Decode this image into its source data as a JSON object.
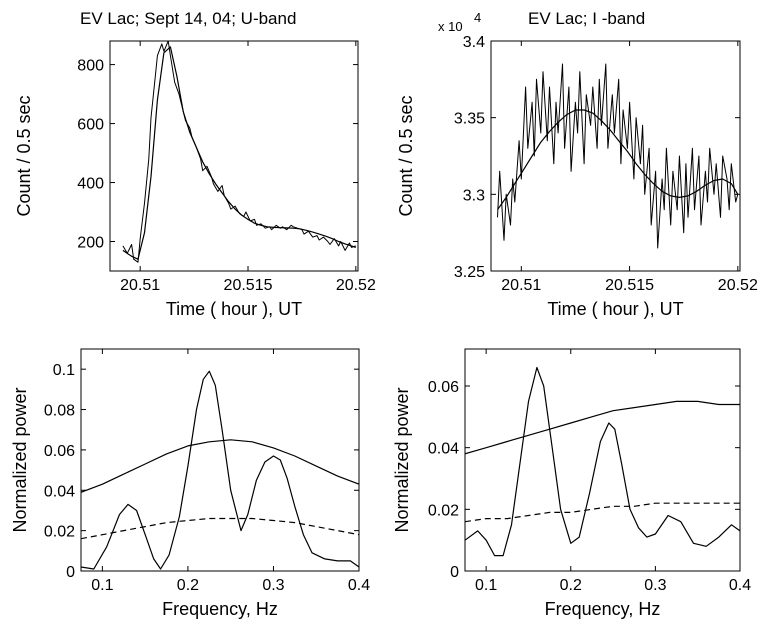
{
  "chart_data": [
    {
      "type": "line",
      "title": "EV Lac; Sept 14, 04; U-band",
      "xlabel": "Time ( hour ), UT",
      "ylabel": "Count / 0.5 sec",
      "xlim": [
        20.5086,
        20.5201
      ],
      "ylim": [
        100,
        880
      ],
      "xticks": [
        20.51,
        20.515,
        20.52
      ],
      "xtick_labels": [
        "20.51",
        "20.515",
        "20.52"
      ],
      "yticks": [
        200,
        400,
        600,
        800
      ],
      "ytick_labels": [
        "200",
        "400",
        "600",
        "800"
      ],
      "grid": false,
      "series": [
        {
          "style": "solid-noisy",
          "x": [
            20.5092,
            20.5094,
            20.5096,
            20.5097,
            20.5099,
            20.51,
            20.5102,
            20.5104,
            20.5105,
            20.5107,
            20.5108,
            20.511,
            20.5111,
            20.5113,
            20.5114,
            20.5116,
            20.5118,
            20.512,
            20.5121,
            20.5123,
            20.5124,
            20.5126,
            20.5128,
            20.5129,
            20.5131,
            20.5133,
            20.5134,
            20.5136,
            20.5138,
            20.5139,
            20.5141,
            20.5142,
            20.5144,
            20.5146,
            20.5148,
            20.5149,
            20.5151,
            20.5153,
            20.5154,
            20.5156,
            20.5158,
            20.516,
            20.5161,
            20.5163,
            20.5165,
            20.5166,
            20.5168,
            20.517,
            20.5171,
            20.5173,
            20.5175,
            20.5176,
            20.5178,
            20.518,
            20.5182,
            20.5183,
            20.5185,
            20.5187,
            20.5188,
            20.519,
            20.5192,
            20.5193,
            20.5195,
            20.5197,
            20.5198,
            20.52
          ],
          "y": [
            185,
            160,
            190,
            140,
            130,
            210,
            330,
            480,
            620,
            760,
            830,
            870,
            845,
            880,
            830,
            740,
            700,
            640,
            610,
            585,
            555,
            520,
            480,
            440,
            455,
            420,
            395,
            370,
            390,
            355,
            330,
            310,
            320,
            295,
            285,
            300,
            270,
            275,
            255,
            260,
            245,
            250,
            240,
            255,
            245,
            250,
            240,
            255,
            250,
            245,
            240,
            225,
            235,
            215,
            220,
            205,
            215,
            200,
            190,
            210,
            185,
            200,
            170,
            195,
            180,
            185
          ]
        },
        {
          "style": "solid-smooth",
          "x": [
            20.5092,
            20.5096,
            20.5099,
            20.5102,
            20.5105,
            20.5108,
            20.5111,
            20.5114,
            20.5117,
            20.512,
            20.5123,
            20.5126,
            20.5129,
            20.5132,
            20.5135,
            20.5138,
            20.5141,
            20.5144,
            20.5147,
            20.515,
            20.5153,
            20.5156,
            20.5159,
            20.5162,
            20.5165,
            20.5168,
            20.5171,
            20.5174,
            20.5177,
            20.518,
            20.5183,
            20.5186,
            20.5189,
            20.5192,
            20.5195,
            20.5198,
            20.52
          ],
          "y": [
            170,
            150,
            140,
            230,
            420,
            680,
            840,
            860,
            760,
            640,
            570,
            520,
            470,
            430,
            395,
            365,
            335,
            310,
            290,
            275,
            262,
            255,
            250,
            248,
            247,
            246,
            245,
            243,
            238,
            232,
            225,
            218,
            210,
            200,
            192,
            185,
            180
          ]
        }
      ]
    },
    {
      "type": "line",
      "title": "EV Lac; I -band",
      "multiplier": "x 10",
      "multiplier_exp": "4",
      "xlabel": "Time ( hour ), UT",
      "ylabel": "Count / 0.5 sec",
      "xlim": [
        20.5086,
        20.5201
      ],
      "ylim": [
        3.25,
        3.4
      ],
      "xticks": [
        20.51,
        20.515,
        20.52
      ],
      "xtick_labels": [
        "20.51",
        "20.515",
        "20.52"
      ],
      "yticks": [
        3.25,
        3.3,
        3.35,
        3.4
      ],
      "ytick_labels": [
        "3.25",
        "3.3",
        "3.35",
        "3.4"
      ],
      "grid": false,
      "series": [
        {
          "style": "solid-noisy",
          "x": [
            20.5089,
            20.509,
            20.5092,
            20.5093,
            20.5095,
            20.5096,
            20.5097,
            20.5099,
            20.51,
            20.5102,
            20.5103,
            20.5105,
            20.5106,
            20.5107,
            20.5109,
            20.511,
            20.5112,
            20.5113,
            20.5115,
            20.5116,
            20.5117,
            20.5119,
            20.512,
            20.5122,
            20.5123,
            20.5125,
            20.5126,
            20.5127,
            20.5129,
            20.513,
            20.5132,
            20.5133,
            20.5135,
            20.5136,
            20.5137,
            20.5139,
            20.514,
            20.5142,
            20.5143,
            20.5145,
            20.5146,
            20.5147,
            20.5149,
            20.515,
            20.5152,
            20.5153,
            20.5155,
            20.5156,
            20.5157,
            20.5159,
            20.516,
            20.5162,
            20.5163,
            20.5165,
            20.5166,
            20.5167,
            20.5169,
            20.517,
            20.5172,
            20.5173,
            20.5175,
            20.5176,
            20.5177,
            20.5179,
            20.518,
            20.5182,
            20.5183,
            20.5185,
            20.5186,
            20.5187,
            20.5189,
            20.519,
            20.5192,
            20.5193,
            20.5195,
            20.5196,
            20.5197,
            20.5199,
            20.52
          ],
          "y": [
            3.285,
            3.315,
            3.27,
            3.3,
            3.28,
            3.31,
            3.295,
            3.335,
            3.31,
            3.37,
            3.33,
            3.36,
            3.325,
            3.375,
            3.34,
            3.38,
            3.335,
            3.37,
            3.32,
            3.36,
            3.34,
            3.385,
            3.33,
            3.37,
            3.315,
            3.36,
            3.34,
            3.38,
            3.32,
            3.365,
            3.345,
            3.37,
            3.33,
            3.375,
            3.345,
            3.385,
            3.33,
            3.365,
            3.34,
            3.375,
            3.32,
            3.355,
            3.33,
            3.36,
            3.31,
            3.35,
            3.32,
            3.345,
            3.3,
            3.33,
            3.28,
            3.315,
            3.265,
            3.31,
            3.29,
            3.33,
            3.28,
            3.315,
            3.29,
            3.325,
            3.275,
            3.32,
            3.285,
            3.33,
            3.29,
            3.325,
            3.28,
            3.315,
            3.295,
            3.33,
            3.3,
            3.32,
            3.285,
            3.325,
            3.31,
            3.29,
            3.32,
            3.295,
            3.3
          ]
        },
        {
          "style": "solid-smooth",
          "x": [
            20.5089,
            20.5093,
            20.5097,
            20.5101,
            20.5105,
            20.5109,
            20.5113,
            20.5117,
            20.5121,
            20.5125,
            20.5129,
            20.5133,
            20.5137,
            20.5141,
            20.5145,
            20.5149,
            20.5153,
            20.5157,
            20.5161,
            20.5165,
            20.5169,
            20.5173,
            20.5177,
            20.5181,
            20.5185,
            20.5189,
            20.5193,
            20.5197,
            20.52
          ],
          "y": [
            3.29,
            3.298,
            3.307,
            3.316,
            3.325,
            3.334,
            3.341,
            3.347,
            3.352,
            3.355,
            3.355,
            3.353,
            3.348,
            3.342,
            3.335,
            3.328,
            3.32,
            3.313,
            3.307,
            3.302,
            3.299,
            3.298,
            3.299,
            3.302,
            3.306,
            3.309,
            3.31,
            3.307,
            3.3
          ]
        }
      ]
    },
    {
      "type": "line",
      "title": "",
      "xlabel": "Frequency,  Hz",
      "ylabel": "Normalized power",
      "xlim": [
        0.075,
        0.4
      ],
      "ylim": [
        0,
        0.11
      ],
      "xticks": [
        0.1,
        0.2,
        0.3,
        0.4
      ],
      "xtick_labels": [
        "0.1",
        "0.2",
        "0.3",
        "0.4"
      ],
      "yticks": [
        0,
        0.02,
        0.04,
        0.06,
        0.08,
        0.1
      ],
      "ytick_labels": [
        "0",
        "0.02",
        "0.04",
        "0.06",
        "0.08",
        "0.1"
      ],
      "grid": false,
      "series": [
        {
          "style": "solid",
          "x": [
            0.075,
            0.09,
            0.105,
            0.12,
            0.13,
            0.14,
            0.15,
            0.16,
            0.168,
            0.178,
            0.19,
            0.2,
            0.21,
            0.218,
            0.225,
            0.232,
            0.24,
            0.25,
            0.262,
            0.27,
            0.28,
            0.29,
            0.3,
            0.308,
            0.316,
            0.325,
            0.335,
            0.345,
            0.36,
            0.375,
            0.39,
            0.4
          ],
          "y": [
            0.002,
            0.001,
            0.012,
            0.028,
            0.033,
            0.03,
            0.018,
            0.006,
            0.001,
            0.008,
            0.027,
            0.052,
            0.08,
            0.095,
            0.099,
            0.092,
            0.07,
            0.04,
            0.02,
            0.028,
            0.045,
            0.054,
            0.057,
            0.055,
            0.046,
            0.032,
            0.018,
            0.009,
            0.006,
            0.005,
            0.005,
            0.002
          ]
        },
        {
          "style": "solid",
          "x": [
            0.075,
            0.1,
            0.125,
            0.15,
            0.175,
            0.2,
            0.225,
            0.25,
            0.275,
            0.3,
            0.325,
            0.35,
            0.375,
            0.4
          ],
          "y": [
            0.039,
            0.043,
            0.048,
            0.053,
            0.058,
            0.062,
            0.064,
            0.065,
            0.064,
            0.061,
            0.057,
            0.052,
            0.047,
            0.043
          ]
        },
        {
          "style": "dashed",
          "x": [
            0.075,
            0.1,
            0.125,
            0.15,
            0.175,
            0.2,
            0.225,
            0.25,
            0.275,
            0.3,
            0.325,
            0.35,
            0.375,
            0.4
          ],
          "y": [
            0.016,
            0.018,
            0.02,
            0.022,
            0.024,
            0.025,
            0.026,
            0.026,
            0.026,
            0.025,
            0.024,
            0.022,
            0.02,
            0.018
          ]
        }
      ]
    },
    {
      "type": "line",
      "title": "",
      "xlabel": "Frequency,  Hz",
      "ylabel": "Normalized power",
      "xlim": [
        0.075,
        0.4
      ],
      "ylim": [
        0,
        0.072
      ],
      "xticks": [
        0.1,
        0.2,
        0.3,
        0.4
      ],
      "xtick_labels": [
        "0.1",
        "0.2",
        "0.3",
        "0.4"
      ],
      "yticks": [
        0,
        0.02,
        0.04,
        0.06
      ],
      "ytick_labels": [
        "0",
        "0.02",
        "0.04",
        "0.06"
      ],
      "grid": false,
      "series": [
        {
          "style": "solid",
          "x": [
            0.075,
            0.09,
            0.1,
            0.11,
            0.12,
            0.13,
            0.14,
            0.15,
            0.16,
            0.168,
            0.178,
            0.188,
            0.2,
            0.21,
            0.222,
            0.235,
            0.245,
            0.252,
            0.26,
            0.27,
            0.28,
            0.29,
            0.3,
            0.315,
            0.33,
            0.345,
            0.36,
            0.375,
            0.39,
            0.4
          ],
          "y": [
            0.01,
            0.013,
            0.01,
            0.005,
            0.005,
            0.015,
            0.035,
            0.055,
            0.066,
            0.06,
            0.04,
            0.02,
            0.009,
            0.011,
            0.025,
            0.042,
            0.048,
            0.046,
            0.035,
            0.02,
            0.014,
            0.011,
            0.012,
            0.018,
            0.016,
            0.009,
            0.008,
            0.011,
            0.015,
            0.013
          ]
        },
        {
          "style": "solid",
          "x": [
            0.075,
            0.1,
            0.125,
            0.15,
            0.175,
            0.2,
            0.225,
            0.25,
            0.275,
            0.3,
            0.325,
            0.35,
            0.375,
            0.4
          ],
          "y": [
            0.038,
            0.04,
            0.042,
            0.044,
            0.046,
            0.048,
            0.05,
            0.052,
            0.053,
            0.054,
            0.055,
            0.055,
            0.054,
            0.054
          ]
        },
        {
          "style": "dashed",
          "x": [
            0.075,
            0.1,
            0.125,
            0.15,
            0.175,
            0.2,
            0.225,
            0.25,
            0.275,
            0.3,
            0.325,
            0.35,
            0.375,
            0.4
          ],
          "y": [
            0.016,
            0.017,
            0.017,
            0.018,
            0.019,
            0.019,
            0.02,
            0.021,
            0.021,
            0.022,
            0.022,
            0.022,
            0.022,
            0.022
          ]
        }
      ]
    }
  ]
}
